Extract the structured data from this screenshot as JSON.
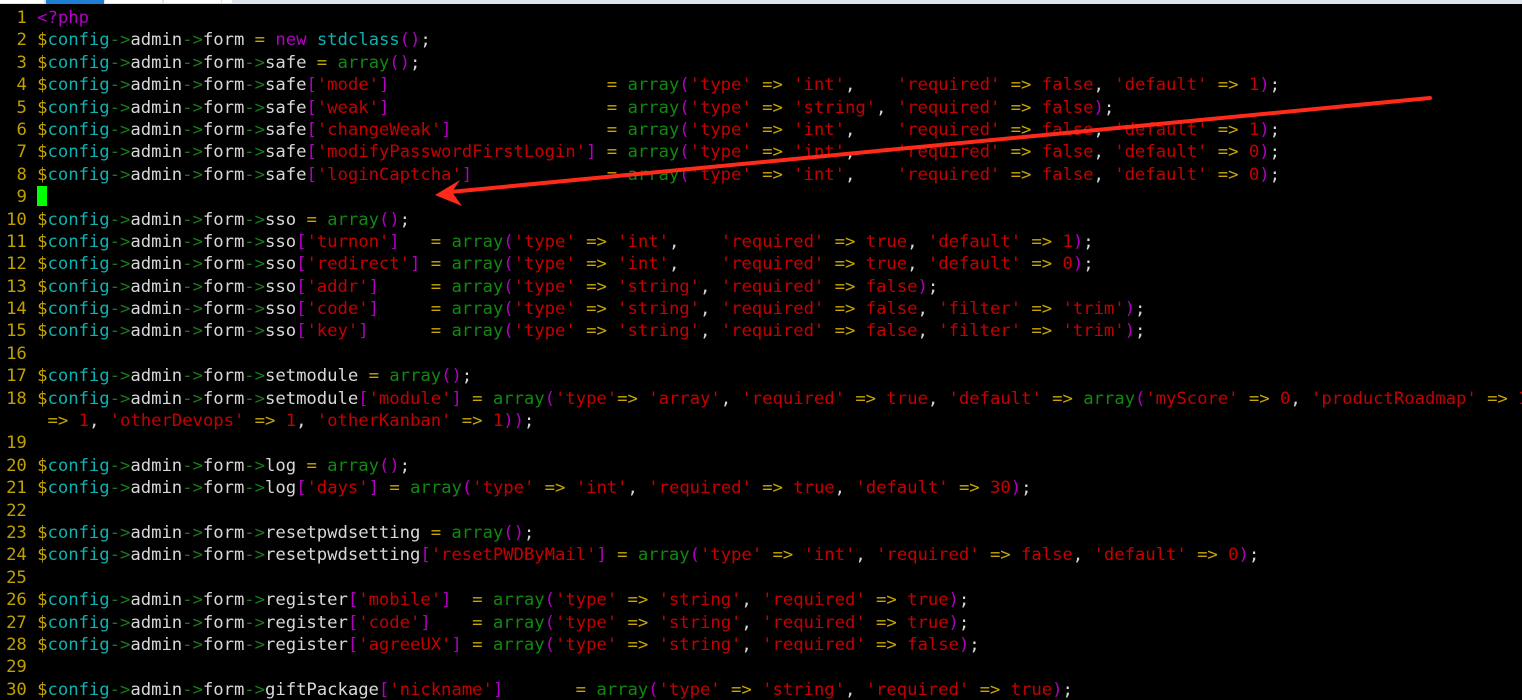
{
  "colors": {
    "arrow": "#ff2a1a",
    "cursor": "#00ff00",
    "string": "#c40000",
    "keyword": "#b000c0",
    "operator": "#c8a800",
    "variable": "#10b0b0",
    "function": "#118811"
  },
  "lines": [
    {
      "num": "1",
      "code": "<?php"
    },
    {
      "num": "2",
      "code": "$config->admin->form = new stdclass();"
    },
    {
      "num": "3",
      "code": "$config->admin->form->safe = array();"
    },
    {
      "num": "4",
      "code": "$config->admin->form->safe['mode']                     = array('type' => 'int',    'required' => false, 'default' => 1);"
    },
    {
      "num": "5",
      "code": "$config->admin->form->safe['weak']                     = array('type' => 'string', 'required' => false);"
    },
    {
      "num": "6",
      "code": "$config->admin->form->safe['changeWeak']               = array('type' => 'int',    'required' => false, 'default' => 1);"
    },
    {
      "num": "7",
      "code": "$config->admin->form->safe['modifyPasswordFirstLogin'] = array('type' => 'int',    'required' => false, 'default' => 0);"
    },
    {
      "num": "8",
      "code": "$config->admin->form->safe['loginCaptcha']             = array('type' => 'int',    'required' => false, 'default' => 0);"
    },
    {
      "num": "9",
      "code": ""
    },
    {
      "num": "10",
      "code": "$config->admin->form->sso = array();"
    },
    {
      "num": "11",
      "code": "$config->admin->form->sso['turnon']   = array('type' => 'int',    'required' => true, 'default' => 1);"
    },
    {
      "num": "12",
      "code": "$config->admin->form->sso['redirect'] = array('type' => 'int',    'required' => true, 'default' => 0);"
    },
    {
      "num": "13",
      "code": "$config->admin->form->sso['addr']     = array('type' => 'string', 'required' => false);"
    },
    {
      "num": "14",
      "code": "$config->admin->form->sso['code']     = array('type' => 'string', 'required' => false, 'filter' => 'trim');"
    },
    {
      "num": "15",
      "code": "$config->admin->form->sso['key']      = array('type' => 'string', 'required' => false, 'filter' => 'trim');"
    },
    {
      "num": "16",
      "code": ""
    },
    {
      "num": "17",
      "code": "$config->admin->form->setmodule = array();"
    },
    {
      "num": "18",
      "code": "$config->admin->form->setmodule['module'] = array('type'=> 'array', 'required' => true, 'default' => array('myScore' => 0, 'productRoadmap' => 1"
    },
    {
      "num": "",
      "code": " => 1, 'otherDevops' => 1, 'otherKanban' => 1));"
    },
    {
      "num": "19",
      "code": ""
    },
    {
      "num": "20",
      "code": "$config->admin->form->log = array();"
    },
    {
      "num": "21",
      "code": "$config->admin->form->log['days'] = array('type' => 'int', 'required' => true, 'default' => 30);"
    },
    {
      "num": "22",
      "code": ""
    },
    {
      "num": "23",
      "code": "$config->admin->form->resetpwdsetting = array();"
    },
    {
      "num": "24",
      "code": "$config->admin->form->resetpwdsetting['resetPWDByMail'] = array('type' => 'int', 'required' => false, 'default' => 0);"
    },
    {
      "num": "25",
      "code": ""
    },
    {
      "num": "26",
      "code": "$config->admin->form->register['mobile']  = array('type' => 'string', 'required' => true);"
    },
    {
      "num": "27",
      "code": "$config->admin->form->register['code']    = array('type' => 'string', 'required' => true);"
    },
    {
      "num": "28",
      "code": "$config->admin->form->register['agreeUX'] = array('type' => 'string', 'required' => false);"
    },
    {
      "num": "29",
      "code": ""
    },
    {
      "num": "30",
      "code": "$config->admin->form->giftPackage['nickname']       = array('type' => 'string', 'required' => true);"
    }
  ]
}
